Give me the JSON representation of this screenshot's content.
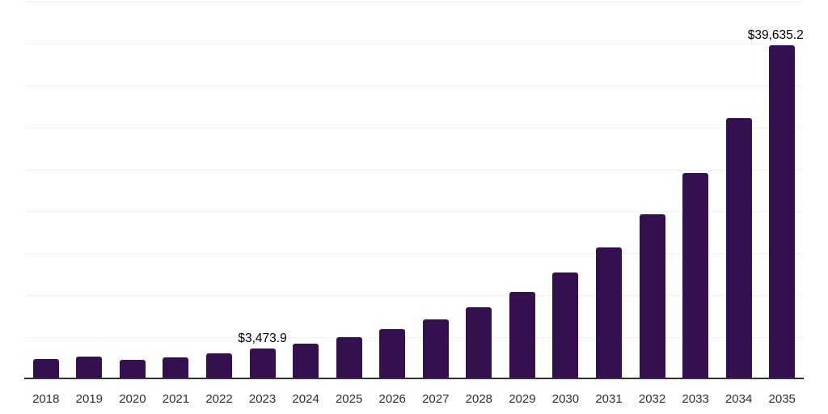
{
  "chart_data": {
    "type": "bar",
    "title": "",
    "xlabel": "",
    "ylabel": "",
    "categories": [
      "2018",
      "2019",
      "2020",
      "2021",
      "2022",
      "2023",
      "2024",
      "2025",
      "2026",
      "2027",
      "2028",
      "2029",
      "2030",
      "2031",
      "2032",
      "2033",
      "2034",
      "2035"
    ],
    "values": [
      2250,
      2550,
      2150,
      2450,
      2850,
      3473.9,
      4050,
      4850,
      5800,
      6950,
      8400,
      10200,
      12550,
      15500,
      19450,
      24400,
      30950,
      39635.2
    ],
    "data_labels": [
      {
        "category": "2023",
        "text": "$3,473.9",
        "dx": 0
      },
      {
        "category": "2035",
        "text": "$39,635.2",
        "dx": -8
      }
    ],
    "ylim": [
      0,
      45000
    ],
    "gridline_step": 5000,
    "grid": "horizontal-only",
    "legend": "none",
    "currency_unit": "$",
    "colors": {
      "bar": "#34114E",
      "axis_line": "#333333",
      "gridline": "#efefef",
      "tick_label": "#2e2e2e",
      "data_label": "#000000",
      "background": "#ffffff"
    }
  }
}
